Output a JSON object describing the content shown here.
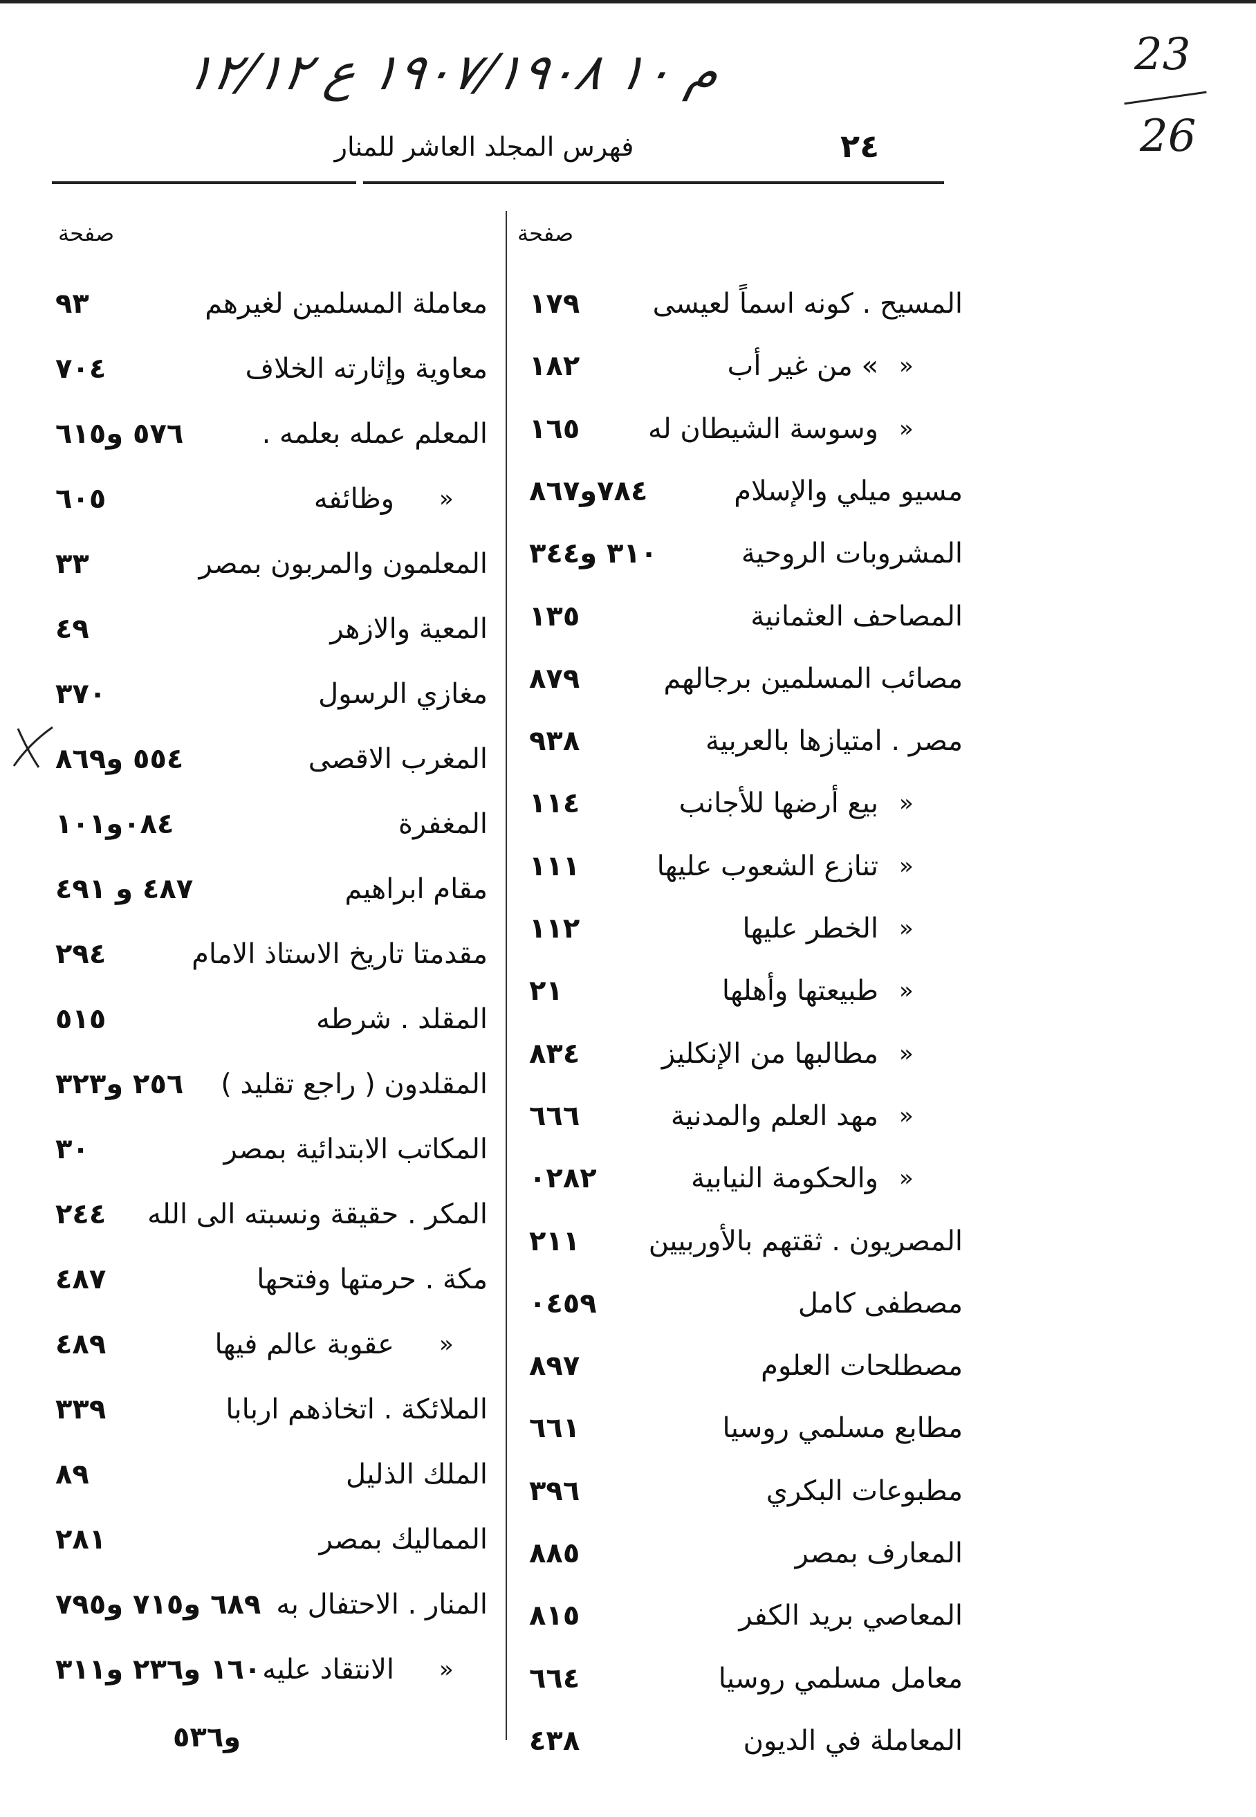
{
  "handwritten_note": "م ١٠ ١٩٠٧/١٩٠٨ ع ١٢/١٢",
  "fraction": {
    "numerator": "23",
    "denominator": "26"
  },
  "header": {
    "title": "فهرس المجلد العاشر للمنار",
    "page_number": "٢٤"
  },
  "column_header": "صفحة",
  "right_column": [
    {
      "ditto": "",
      "text": "المسيح . كونه اسماً لعيسى",
      "pages": "١٧٩"
    },
    {
      "ditto": "»",
      "text": "»   من غير أب",
      "pages": "١٨٢"
    },
    {
      "ditto": "»",
      "text": "وسوسة الشيطان له",
      "pages": "١٦٥"
    },
    {
      "ditto": "",
      "text": "مسيو ميلي والإسلام",
      "pages": "٧٨٤و٨٦٧"
    },
    {
      "ditto": "",
      "text": "المشروبات الروحية",
      "pages": "٣١٠ و٣٤٤"
    },
    {
      "ditto": "",
      "text": "المصاحف العثمانية",
      "pages": "١٣٥"
    },
    {
      "ditto": "",
      "text": "مصائب المسلمين برجالهم",
      "pages": "٨٧٩"
    },
    {
      "ditto": "",
      "text": "مصر . امتيازها بالعربية",
      "pages": "٩٣٨"
    },
    {
      "ditto": "»",
      "text": "بيع أرضها للأجانب",
      "pages": "١١٤"
    },
    {
      "ditto": "»",
      "text": "تنازع الشعوب عليها",
      "pages": "١١١"
    },
    {
      "ditto": "»",
      "text": "الخطر عليها",
      "pages": "١١٢"
    },
    {
      "ditto": "»",
      "text": "طبيعتها وأهلها",
      "pages": "٢١"
    },
    {
      "ditto": "»",
      "text": "مطالبها من الإنكليز",
      "pages": "٨٣٤"
    },
    {
      "ditto": "»",
      "text": "مهد العلم والمدنية",
      "pages": "٦٦٦"
    },
    {
      "ditto": "»",
      "text": "والحكومة النيابية",
      "pages": "٠٢٨٢"
    },
    {
      "ditto": "",
      "text": "المصريون . ثقتهم بالأوربيين",
      "pages": "٢١١"
    },
    {
      "ditto": "",
      "text": "مصطفى كامل",
      "pages": "٠٤٥٩"
    },
    {
      "ditto": "",
      "text": "مصطلحات العلوم",
      "pages": "٨٩٧"
    },
    {
      "ditto": "",
      "text": "مطابع مسلمي روسيا",
      "pages": "٦٦١"
    },
    {
      "ditto": "",
      "text": "مطبوعات البكري",
      "pages": "٣٩٦"
    },
    {
      "ditto": "",
      "text": "المعارف بمصر",
      "pages": "٨٨٥"
    },
    {
      "ditto": "",
      "text": "المعاصي بريد الكفر",
      "pages": "٨١٥"
    },
    {
      "ditto": "",
      "text": "معامل مسلمي روسيا",
      "pages": "٦٦٤"
    },
    {
      "ditto": "",
      "text": "المعاملة في الديون",
      "pages": "٤٣٨"
    }
  ],
  "left_column": [
    {
      "ditto": "",
      "text": "معاملة المسلمين لغيرهم",
      "pages": "٩٣"
    },
    {
      "ditto": "",
      "text": "معاوية وإثارته الخلاف",
      "pages": "٧٠٤"
    },
    {
      "ditto": "",
      "text": "المعلم عمله بعلمه .",
      "pages": "٥٧٦ و٦١٥"
    },
    {
      "ditto": "»",
      "text": "وظائفه",
      "pages": "٦٠٥"
    },
    {
      "ditto": "",
      "text": "المعلمون والمربون بمصر",
      "pages": "٣٣"
    },
    {
      "ditto": "",
      "text": "المعية والازهر",
      "pages": "٤٩"
    },
    {
      "ditto": "",
      "text": "مغازي الرسول",
      "pages": "٣٧٠"
    },
    {
      "ditto": "",
      "text": "المغرب الاقصى",
      "pages": "٥٥٤ و٨٦٩"
    },
    {
      "ditto": "",
      "text": "المغفرة",
      "pages": "٠٨٤و١٠١"
    },
    {
      "ditto": "",
      "text": "مقام ابراهيم",
      "pages": "٤٨٧ و ٤٩١"
    },
    {
      "ditto": "",
      "text": "مقدمتا تاريخ الاستاذ الامام",
      "pages": "٢٩٤"
    },
    {
      "ditto": "",
      "text": "المقلد . شرطه",
      "pages": "٥١٥"
    },
    {
      "ditto": "",
      "text": "المقلدون ( راجع تقليد )",
      "pages": "٢٥٦ و٣٢٣"
    },
    {
      "ditto": "",
      "text": "المكاتب الابتدائية بمصر",
      "pages": "٣٠"
    },
    {
      "ditto": "",
      "text": "المكر . حقيقة ونسبته الى الله",
      "pages": "٢٤٤"
    },
    {
      "ditto": "",
      "text": "مكة . حرمتها وفتحها",
      "pages": "٤٨٧"
    },
    {
      "ditto": "»",
      "text": "عقوبة عالم فيها",
      "pages": "٤٨٩"
    },
    {
      "ditto": "",
      "text": "الملائكة . اتخاذهم اربابا",
      "pages": "٣٣٩"
    },
    {
      "ditto": "",
      "text": "الملك الذليل",
      "pages": "٨٩"
    },
    {
      "ditto": "",
      "text": "المماليك بمصر",
      "pages": "٢٨١"
    },
    {
      "ditto": "",
      "text": "المنار . الاحتفال به",
      "pages": "٦٨٩ و٧١٥ و٧٩٥"
    },
    {
      "ditto": "»",
      "text": "الانتقاد عليه",
      "pages": "١٦٠ و٢٣٦ و٣١١"
    }
  ],
  "left_continuation": "و٥٣٦"
}
